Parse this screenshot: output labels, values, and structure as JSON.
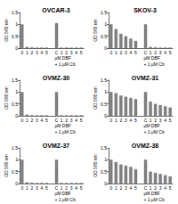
{
  "chart_data": [
    {
      "type": "bar",
      "title": "OVCAR-3",
      "ylabel": "OD 595 nm",
      "categories": [
        "0",
        "1",
        "2",
        "3",
        "4",
        "5",
        null,
        "C",
        "1",
        "2",
        "3",
        "4",
        "5"
      ],
      "values": [
        1.0,
        0.05,
        0.03,
        0.02,
        0.02,
        0.02,
        null,
        1.05,
        0.02,
        0.02,
        0.02,
        0.02,
        0.02
      ],
      "color": "#808080",
      "ylim": [
        0,
        1.5
      ],
      "yticks": [
        0,
        0.5,
        1,
        1.5
      ],
      "annotations": [
        "µM DBF",
        "+ 1 µM Cb"
      ]
    },
    {
      "type": "bar",
      "title": "SKOV-3",
      "ylabel": "OD 595 nm",
      "categories": [
        "0",
        "1",
        "2",
        "3",
        "4",
        "5",
        null,
        "C",
        "1",
        "2",
        "3",
        "4",
        "5"
      ],
      "values": [
        1.0,
        0.8,
        0.6,
        0.5,
        0.4,
        0.3,
        null,
        1.0,
        0.05,
        0.03,
        0.02,
        0.02,
        0.02
      ],
      "color": "#808080",
      "ylim": [
        0,
        1.5
      ],
      "yticks": [
        0,
        0.5,
        1,
        1.5
      ],
      "annotations": [
        "µM DBF",
        "+ 1 µM Cb"
      ]
    },
    {
      "type": "bar",
      "title": "OVMZ-30",
      "ylabel": "OD 595 nm",
      "categories": [
        "0",
        "1",
        "2",
        "3",
        "4",
        "5",
        null,
        "C",
        "1",
        "2",
        "3",
        "4",
        "5"
      ],
      "values": [
        1.0,
        0.05,
        0.03,
        0.02,
        0.02,
        0.02,
        null,
        1.0,
        0.02,
        0.02,
        0.02,
        0.02,
        0.02
      ],
      "color": "#808080",
      "ylim": [
        0,
        1.5
      ],
      "yticks": [
        0,
        0.5,
        1,
        1.5
      ],
      "annotations": [
        "µM DBF",
        "+ 1 µM Cb"
      ]
    },
    {
      "type": "bar",
      "title": "OVMZ-31",
      "ylabel": "OD 595 nm",
      "categories": [
        "0",
        "1",
        "2",
        "3",
        "4",
        "5",
        null,
        "C",
        "1",
        "2",
        "3",
        "4",
        "5"
      ],
      "values": [
        1.0,
        0.95,
        0.85,
        0.8,
        0.75,
        0.7,
        null,
        1.0,
        0.6,
        0.5,
        0.45,
        0.4,
        0.35
      ],
      "color": "#808080",
      "ylim": [
        0,
        1.5
      ],
      "yticks": [
        0,
        0.5,
        1,
        1.5
      ],
      "annotations": [
        "µM DBF",
        "+ 1 µM Cb"
      ]
    },
    {
      "type": "bar",
      "title": "OVMZ-37",
      "ylabel": "OD 595 nm",
      "categories": [
        "0",
        "1",
        "2",
        "3",
        "4",
        "5",
        null,
        "C",
        "1",
        "2",
        "3",
        "4",
        "5"
      ],
      "values": [
        1.0,
        0.05,
        0.03,
        0.02,
        0.02,
        0.02,
        null,
        1.0,
        0.02,
        0.02,
        0.02,
        0.02,
        0.02
      ],
      "color": "#808080",
      "ylim": [
        0,
        1.5
      ],
      "yticks": [
        0,
        0.5,
        1,
        1.5
      ],
      "annotations": [
        "µM DBF",
        "+ 1 µM Cb"
      ]
    },
    {
      "type": "bar",
      "title": "OVMZ-38",
      "ylabel": "OD 595 nm",
      "categories": [
        "0",
        "1",
        "2",
        "3",
        "4",
        "5",
        null,
        "C",
        "1",
        "2",
        "3",
        "4",
        "5"
      ],
      "values": [
        1.0,
        0.9,
        0.8,
        0.75,
        0.7,
        0.6,
        null,
        1.0,
        0.5,
        0.45,
        0.4,
        0.35,
        0.3
      ],
      "color": "#808080",
      "ylim": [
        0,
        1.5
      ],
      "yticks": [
        0,
        0.5,
        1,
        1.5
      ],
      "annotations": [
        "µM DBF",
        "+ 1 µM Cb"
      ]
    }
  ]
}
